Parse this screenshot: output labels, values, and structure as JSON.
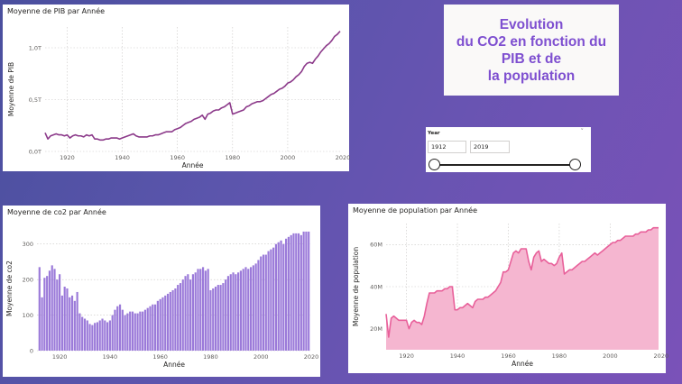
{
  "title_box": {
    "text": "Evolution\ndu CO2 en fonction du\nPIB et de\nla population",
    "color": "#7e4fd0"
  },
  "slicer": {
    "label": "Year",
    "chevron": "˅",
    "start": "1912",
    "end": "2019",
    "start_value": 1912,
    "end_value": 2019
  },
  "chart_data": [
    {
      "type": "line",
      "title": "Moyenne de PIB par Année",
      "xlabel": "Année",
      "ylabel": "Moyenne de PIB",
      "color": "#8c3a8a",
      "xlim": [
        1912,
        2019
      ],
      "ylim": [
        0,
        1.2
      ],
      "x_ticks": [
        1920,
        1940,
        1960,
        1980,
        2000,
        2020
      ],
      "x_tick_labels": [
        "1920",
        "1940",
        "1960",
        "1980",
        "2000",
        "2020"
      ],
      "y_ticks": [
        0,
        0.5,
        1.0
      ],
      "y_tick_labels": [
        "0,0T",
        "0,5T",
        "1,0T"
      ],
      "x": [
        1912,
        1913,
        1914,
        1915,
        1916,
        1917,
        1918,
        1919,
        1920,
        1921,
        1922,
        1923,
        1924,
        1925,
        1926,
        1927,
        1928,
        1929,
        1930,
        1931,
        1932,
        1933,
        1934,
        1935,
        1936,
        1937,
        1938,
        1939,
        1940,
        1941,
        1942,
        1943,
        1944,
        1945,
        1946,
        1947,
        1948,
        1949,
        1950,
        1951,
        1952,
        1953,
        1954,
        1955,
        1956,
        1957,
        1958,
        1959,
        1960,
        1961,
        1962,
        1963,
        1964,
        1965,
        1966,
        1967,
        1968,
        1969,
        1970,
        1971,
        1972,
        1973,
        1974,
        1975,
        1976,
        1977,
        1978,
        1979,
        1980,
        1981,
        1982,
        1983,
        1984,
        1985,
        1986,
        1987,
        1988,
        1989,
        1990,
        1991,
        1992,
        1993,
        1994,
        1995,
        1996,
        1997,
        1998,
        1999,
        2000,
        2001,
        2002,
        2003,
        2004,
        2005,
        2006,
        2007,
        2008,
        2009,
        2010,
        2011,
        2012,
        2013,
        2014,
        2015,
        2016,
        2017,
        2018,
        2019
      ],
      "y": [
        0.18,
        0.12,
        0.15,
        0.16,
        0.17,
        0.16,
        0.16,
        0.15,
        0.16,
        0.13,
        0.15,
        0.16,
        0.15,
        0.15,
        0.14,
        0.16,
        0.15,
        0.16,
        0.12,
        0.12,
        0.11,
        0.11,
        0.12,
        0.12,
        0.13,
        0.13,
        0.13,
        0.12,
        0.13,
        0.14,
        0.15,
        0.16,
        0.17,
        0.15,
        0.14,
        0.14,
        0.14,
        0.14,
        0.15,
        0.15,
        0.16,
        0.16,
        0.17,
        0.18,
        0.19,
        0.19,
        0.19,
        0.21,
        0.22,
        0.23,
        0.25,
        0.27,
        0.28,
        0.29,
        0.31,
        0.32,
        0.33,
        0.35,
        0.31,
        0.36,
        0.37,
        0.39,
        0.4,
        0.4,
        0.42,
        0.43,
        0.45,
        0.47,
        0.36,
        0.37,
        0.38,
        0.39,
        0.4,
        0.43,
        0.44,
        0.46,
        0.47,
        0.48,
        0.48,
        0.49,
        0.51,
        0.53,
        0.55,
        0.56,
        0.58,
        0.6,
        0.61,
        0.63,
        0.66,
        0.67,
        0.69,
        0.72,
        0.74,
        0.77,
        0.82,
        0.85,
        0.86,
        0.85,
        0.89,
        0.92,
        0.96,
        0.99,
        1.02,
        1.04,
        1.07,
        1.11,
        1.13,
        1.16
      ]
    },
    {
      "type": "bar",
      "title": "Moyenne de co2 par Année",
      "xlabel": "Année",
      "ylabel": "Moyenne de co2",
      "color": "#9b7ad9",
      "xlim": [
        1911,
        2020
      ],
      "ylim": [
        0,
        350
      ],
      "x_ticks": [
        1920,
        1940,
        1960,
        1980,
        2000,
        2020
      ],
      "x_tick_labels": [
        "1920",
        "1940",
        "1960",
        "1980",
        "2000",
        "2020"
      ],
      "y_ticks": [
        0,
        100,
        200,
        300
      ],
      "y_tick_labels": [
        "0",
        "100",
        "200",
        "300"
      ],
      "x": [
        1912,
        1913,
        1914,
        1915,
        1916,
        1917,
        1918,
        1919,
        1920,
        1921,
        1922,
        1923,
        1924,
        1925,
        1926,
        1927,
        1928,
        1929,
        1930,
        1931,
        1932,
        1933,
        1934,
        1935,
        1936,
        1937,
        1938,
        1939,
        1940,
        1941,
        1942,
        1943,
        1944,
        1945,
        1946,
        1947,
        1948,
        1949,
        1950,
        1951,
        1952,
        1953,
        1954,
        1955,
        1956,
        1957,
        1958,
        1959,
        1960,
        1961,
        1962,
        1963,
        1964,
        1965,
        1966,
        1967,
        1968,
        1969,
        1970,
        1971,
        1972,
        1973,
        1974,
        1975,
        1976,
        1977,
        1978,
        1979,
        1980,
        1981,
        1982,
        1983,
        1984,
        1985,
        1986,
        1987,
        1988,
        1989,
        1990,
        1991,
        1992,
        1993,
        1994,
        1995,
        1996,
        1997,
        1998,
        1999,
        2000,
        2001,
        2002,
        2003,
        2004,
        2005,
        2006,
        2007,
        2008,
        2009,
        2010,
        2011,
        2012,
        2013,
        2014,
        2015,
        2016,
        2017,
        2018,
        2019
      ],
      "values": [
        235,
        150,
        205,
        210,
        225,
        240,
        230,
        200,
        215,
        155,
        180,
        175,
        150,
        155,
        140,
        165,
        105,
        95,
        90,
        85,
        75,
        72,
        78,
        80,
        85,
        90,
        85,
        80,
        85,
        100,
        115,
        125,
        130,
        115,
        100,
        105,
        110,
        110,
        105,
        105,
        110,
        110,
        115,
        120,
        125,
        130,
        130,
        140,
        145,
        150,
        155,
        160,
        165,
        170,
        175,
        185,
        190,
        200,
        210,
        215,
        200,
        215,
        220,
        230,
        230,
        235,
        225,
        230,
        170,
        175,
        180,
        185,
        185,
        190,
        200,
        210,
        215,
        220,
        215,
        220,
        225,
        230,
        235,
        230,
        235,
        240,
        245,
        255,
        265,
        270,
        270,
        280,
        285,
        290,
        300,
        305,
        310,
        300,
        315,
        320,
        325,
        330,
        330,
        330,
        325,
        335,
        335,
        335
      ]
    },
    {
      "type": "area",
      "title": "Moyenne de population par Année",
      "xlabel": "Année",
      "ylabel": "Moyenne de population",
      "color": "#e8609a",
      "fill": "#f5b6d0",
      "xlim": [
        1912,
        2019
      ],
      "ylim": [
        10,
        70
      ],
      "x_ticks": [
        1920,
        1940,
        1960,
        1980,
        2000,
        2020
      ],
      "x_tick_labels": [
        "1920",
        "1940",
        "1960",
        "1980",
        "2000",
        "2020"
      ],
      "y_ticks": [
        20,
        40,
        60
      ],
      "y_tick_labels": [
        "20M",
        "40M",
        "60M"
      ],
      "x": [
        1912,
        1913,
        1914,
        1915,
        1916,
        1917,
        1918,
        1919,
        1920,
        1921,
        1922,
        1923,
        1924,
        1925,
        1926,
        1927,
        1928,
        1929,
        1930,
        1931,
        1932,
        1933,
        1934,
        1935,
        1936,
        1937,
        1938,
        1939,
        1940,
        1941,
        1942,
        1943,
        1944,
        1945,
        1946,
        1947,
        1948,
        1949,
        1950,
        1951,
        1952,
        1953,
        1954,
        1955,
        1956,
        1957,
        1958,
        1959,
        1960,
        1961,
        1962,
        1963,
        1964,
        1965,
        1966,
        1967,
        1968,
        1969,
        1970,
        1971,
        1972,
        1973,
        1974,
        1975,
        1976,
        1977,
        1978,
        1979,
        1980,
        1981,
        1982,
        1983,
        1984,
        1985,
        1986,
        1987,
        1988,
        1989,
        1990,
        1991,
        1992,
        1993,
        1994,
        1995,
        1996,
        1997,
        1998,
        1999,
        2000,
        2001,
        2002,
        2003,
        2004,
        2005,
        2006,
        2007,
        2008,
        2009,
        2010,
        2011,
        2012,
        2013,
        2014,
        2015,
        2016,
        2017,
        2018,
        2019
      ],
      "y": [
        27,
        16,
        25,
        26,
        25,
        24,
        24,
        24,
        24,
        20,
        23,
        24,
        23,
        23,
        22,
        26,
        32,
        37,
        37,
        37,
        38,
        38,
        38,
        39,
        39,
        40,
        40,
        29,
        29,
        30,
        30,
        31,
        32,
        31,
        30,
        33,
        34,
        34,
        34,
        35,
        35,
        36,
        37,
        38,
        40,
        42,
        47,
        47,
        48,
        52,
        56,
        57,
        56,
        58,
        58,
        58,
        52,
        48,
        54,
        56,
        57,
        52,
        53,
        52,
        51,
        51,
        50,
        51,
        54,
        56,
        46,
        47,
        48,
        48,
        49,
        50,
        51,
        52,
        52,
        53,
        54,
        55,
        56,
        55,
        56,
        57,
        58,
        59,
        60,
        61,
        61,
        62,
        62,
        63,
        64,
        64,
        64,
        64,
        65,
        65,
        66,
        66,
        66,
        67,
        67,
        68,
        68,
        68
      ]
    }
  ]
}
